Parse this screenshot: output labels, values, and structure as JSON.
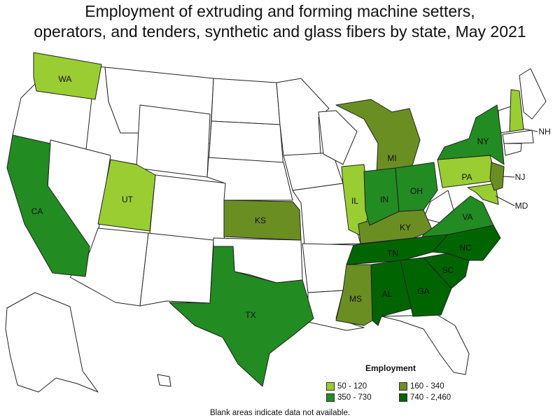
{
  "title_line1": "Employment of extruding and forming machine setters,",
  "title_line2": "operators, and tenders, synthetic and glass fibers by state, May 2021",
  "legend": {
    "title": "Employment",
    "items": [
      {
        "label": "50 - 120",
        "color": "#9acd32"
      },
      {
        "label": "160 - 340",
        "color": "#6b8e23"
      },
      {
        "label": "350 - 730",
        "color": "#228b22"
      },
      {
        "label": "740 - 2,460",
        "color": "#006400"
      }
    ]
  },
  "footnote": "Blank areas indicate data not available.",
  "states": {
    "WA": {
      "label": "WA",
      "range": "50 - 120"
    },
    "UT": {
      "label": "UT",
      "range": "50 - 120"
    },
    "IL": {
      "label": "IL",
      "range": "50 - 120"
    },
    "PA": {
      "label": "PA",
      "range": "50 - 120"
    },
    "NH": {
      "label": "NH",
      "range": "50 - 120"
    },
    "MD": {
      "label": "MD",
      "range": "50 - 120"
    },
    "KS": {
      "label": "KS",
      "range": "160 - 340"
    },
    "MI": {
      "label": "MI",
      "range": "160 - 340"
    },
    "KY": {
      "label": "KY",
      "range": "160 - 340"
    },
    "MS": {
      "label": "MS",
      "range": "160 - 340"
    },
    "NJ": {
      "label": "NJ",
      "range": "160 - 340"
    },
    "CA": {
      "label": "CA",
      "range": "350 - 730"
    },
    "TX": {
      "label": "TX",
      "range": "350 - 730"
    },
    "IN": {
      "label": "IN",
      "range": "350 - 730"
    },
    "OH": {
      "label": "OH",
      "range": "350 - 730"
    },
    "NY": {
      "label": "NY",
      "range": "350 - 730"
    },
    "VA": {
      "label": "VA",
      "range": "350 - 730"
    },
    "TN": {
      "label": "TN",
      "range": "740 - 2,460"
    },
    "AL": {
      "label": "AL",
      "range": "740 - 2,460"
    },
    "GA": {
      "label": "GA",
      "range": "740 - 2,460"
    },
    "SC": {
      "label": "SC",
      "range": "740 - 2,460"
    },
    "NC": {
      "label": "NC",
      "range": "740 - 2,460"
    }
  }
}
